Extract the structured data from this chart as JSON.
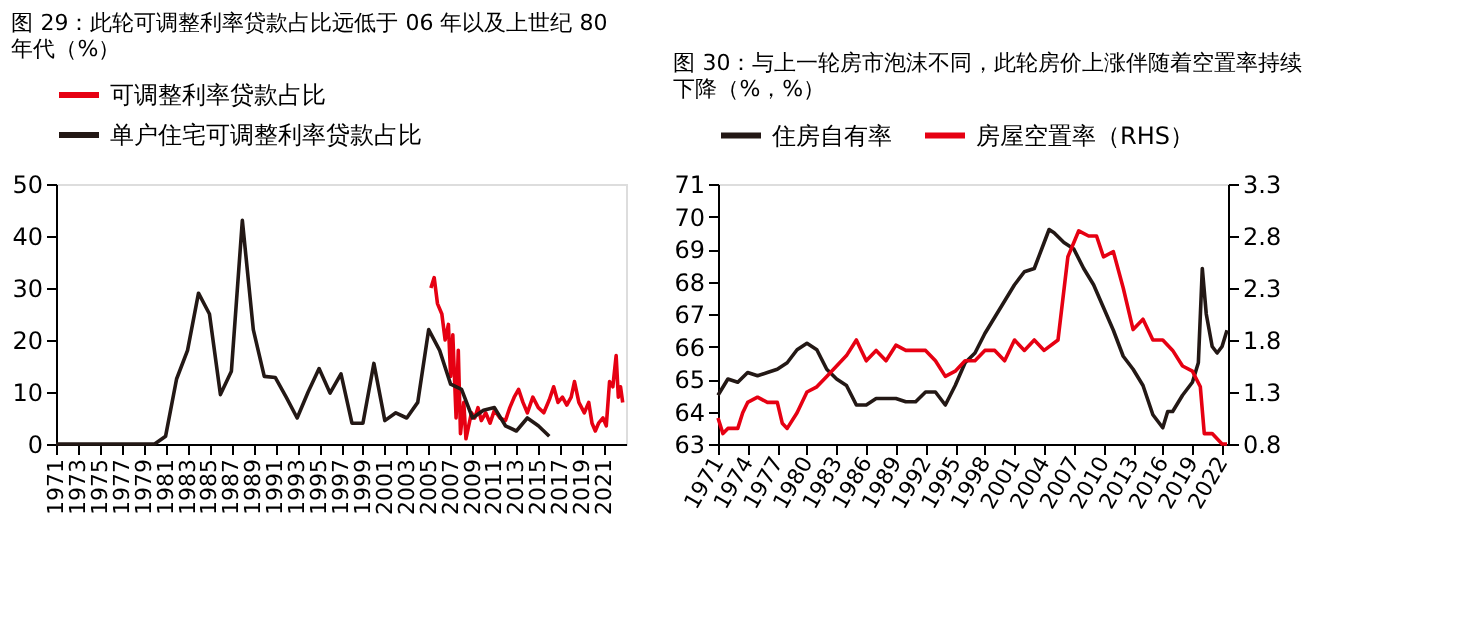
{
  "chart_data": [
    {
      "type": "line",
      "title": "图 29：此轮可调整利率贷款占比远低于 06 年以及上世纪 80 年代（%）",
      "legend": "top",
      "grid": false,
      "line_style": "solid",
      "marker": "none",
      "xlim": [
        1971,
        2023
      ],
      "xticks": [
        1971,
        1973,
        1975,
        1977,
        1979,
        1981,
        1983,
        1985,
        1987,
        1989,
        1991,
        1993,
        1995,
        1997,
        1999,
        2001,
        2003,
        2005,
        2007,
        2009,
        2011,
        2013,
        2015,
        2017,
        2019,
        2021
      ],
      "ylim": [
        0,
        50
      ],
      "yticks": [
        0,
        10,
        20,
        30,
        40,
        50
      ],
      "series": [
        {
          "name": "可调整利率贷款占比",
          "color": "#e60012",
          "x": [
            2005.2,
            2005.5,
            2005.8,
            2006.2,
            2006.5,
            2006.8,
            2007.0,
            2007.2,
            2007.5,
            2007.7,
            2007.9,
            2008.2,
            2008.4,
            2008.6,
            2008.9,
            2009.2,
            2009.5,
            2009.8,
            2010.2,
            2010.6,
            2011.0,
            2011.5,
            2012.0,
            2012.4,
            2012.8,
            2013.2,
            2013.6,
            2014.0,
            2014.5,
            2015.0,
            2015.5,
            2016.0,
            2016.4,
            2016.8,
            2017.2,
            2017.6,
            2018.0,
            2018.3,
            2018.7,
            2019.2,
            2019.6,
            2019.9,
            2020.2,
            2020.5,
            2020.9,
            2021.2,
            2021.5,
            2021.8,
            2022.1,
            2022.3,
            2022.5,
            2022.7
          ],
          "values": [
            30,
            32,
            27,
            25,
            20,
            23,
            13,
            21,
            5,
            18,
            2,
            8,
            1,
            3,
            6,
            5,
            7,
            4.5,
            6,
            4,
            6.5,
            5,
            4.5,
            7,
            9,
            10.5,
            8,
            6,
            9,
            7,
            6,
            8.5,
            11,
            8,
            9,
            7.5,
            9,
            12,
            8,
            6,
            8,
            4,
            2.5,
            4,
            5,
            3.5,
            12,
            11,
            17,
            9,
            11,
            8
          ]
        },
        {
          "name": "单户住宅可调整利率贷款占比",
          "color": "#231815",
          "x": [
            1971,
            1972,
            1973,
            1974,
            1975,
            1976,
            1977,
            1978,
            1979,
            1980,
            1981,
            1982,
            1983,
            1984,
            1985,
            1986,
            1987,
            1988,
            1989,
            1990,
            1991,
            1992,
            1993,
            1994,
            1995,
            1996,
            1997,
            1998,
            1999,
            2000,
            2001,
            2002,
            2003,
            2004,
            2005,
            2006,
            2007,
            2008,
            2009,
            2010,
            2011,
            2012,
            2013,
            2014,
            2015,
            2016
          ],
          "values": [
            0,
            0,
            0,
            0,
            0,
            0,
            0,
            0,
            0,
            0,
            1.5,
            12.5,
            18,
            29,
            25,
            9.5,
            14,
            43,
            22,
            13,
            12.8,
            9,
            5,
            10,
            14.5,
            9.8,
            13.5,
            4,
            4,
            15.5,
            4.5,
            6,
            5,
            8,
            22,
            18,
            11.5,
            10.5,
            5,
            6.5,
            7,
            3.5,
            2.5,
            5,
            3.5,
            1.5
          ]
        }
      ]
    },
    {
      "type": "line",
      "title": "图 30：与上一轮房市泡沫不同，此轮房价上涨伴随着空置率持续下降（%，%）",
      "legend": "top",
      "grid": false,
      "line_style": "solid",
      "marker": "none",
      "xlim": [
        1971,
        2022.6
      ],
      "xticks": [
        1971,
        1974,
        1977,
        1980,
        1983,
        1986,
        1989,
        1992,
        1995,
        1998,
        2001,
        2004,
        2007,
        2010,
        2013,
        2016,
        2019,
        2022
      ],
      "ylim": [
        63,
        71
      ],
      "yticks": [
        63,
        64,
        65,
        66,
        67,
        68,
        69,
        70,
        71
      ],
      "y2lim": [
        0.8,
        3.3
      ],
      "y2ticks": [
        0.8,
        1.3,
        1.8,
        2.3,
        2.8,
        3.3
      ],
      "series": [
        {
          "name": "住房自有率",
          "color": "#231815",
          "x": [
            1971,
            1972,
            1973,
            1974,
            1975,
            1976,
            1977,
            1978,
            1979,
            1980,
            1981,
            1982,
            1983,
            1984,
            1985,
            1986,
            1987,
            1988,
            1989,
            1990,
            1991,
            1992,
            1993,
            1994,
            1995,
            1996,
            1997,
            1998,
            1999,
            2000,
            2001,
            2002,
            2003,
            2004,
            2004.5,
            2005,
            2006,
            2007,
            2008,
            2009,
            2010,
            2011,
            2012,
            2013,
            2014,
            2015,
            2016,
            2016.5,
            2017,
            2018,
            2019,
            2019.6,
            2020.0,
            2020.4,
            2021,
            2021.5,
            2022,
            2022.5
          ],
          "values": [
            64.5,
            65,
            64.9,
            65.2,
            65.1,
            65.2,
            65.3,
            65.5,
            65.9,
            66.1,
            65.9,
            65.3,
            65.0,
            64.8,
            64.2,
            64.2,
            64.4,
            64.4,
            64.4,
            64.3,
            64.3,
            64.6,
            64.6,
            64.2,
            64.8,
            65.5,
            65.8,
            66.4,
            66.9,
            67.4,
            67.9,
            68.3,
            68.4,
            69.2,
            69.6,
            69.5,
            69.2,
            69.0,
            68.4,
            67.9,
            67.2,
            66.5,
            65.7,
            65.3,
            64.8,
            63.9,
            63.5,
            64.0,
            64.0,
            64.5,
            64.9,
            65.5,
            68.4,
            67.0,
            66.0,
            65.8,
            66.0,
            66.5
          ]
        },
        {
          "name": "房屋空置率（RHS）",
          "color": "#e60012",
          "axis": "y2",
          "x": [
            1971,
            1971.5,
            1972,
            1973,
            1973.5,
            1974,
            1975,
            1976,
            1977,
            1977.5,
            1978,
            1979,
            1980,
            1981,
            1982,
            1983,
            1984,
            1985,
            1985.5,
            1986,
            1987,
            1988,
            1989,
            1990,
            1991,
            1992,
            1993,
            1994,
            1995,
            1996,
            1997,
            1998,
            1999,
            2000,
            2001,
            2002,
            2003,
            2004,
            2005.4,
            2006.4,
            2007.5,
            2008.5,
            2009.3,
            2010,
            2011,
            2012,
            2013,
            2014,
            2015,
            2016,
            2017,
            2018,
            2019,
            2019.8,
            2020.2,
            2021,
            2022,
            2022.5
          ],
          "values": [
            1.05,
            0.9,
            0.95,
            0.95,
            1.1,
            1.2,
            1.25,
            1.2,
            1.2,
            1.0,
            0.95,
            1.1,
            1.3,
            1.35,
            1.45,
            1.55,
            1.65,
            1.8,
            1.7,
            1.6,
            1.7,
            1.6,
            1.75,
            1.7,
            1.7,
            1.7,
            1.6,
            1.45,
            1.5,
            1.6,
            1.6,
            1.7,
            1.7,
            1.6,
            1.8,
            1.7,
            1.8,
            1.7,
            1.8,
            2.6,
            2.85,
            2.8,
            2.8,
            2.6,
            2.65,
            2.3,
            1.9,
            2.0,
            1.8,
            1.8,
            1.7,
            1.55,
            1.5,
            1.35,
            0.9,
            0.9,
            0.8,
            0.8
          ]
        }
      ]
    }
  ]
}
